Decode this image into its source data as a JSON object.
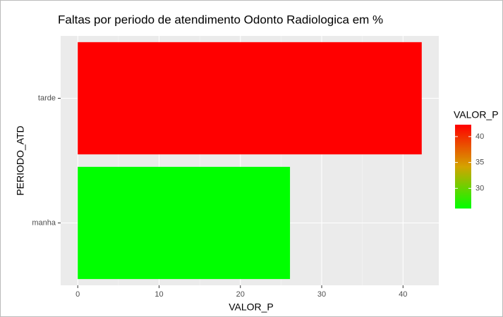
{
  "chart_data": {
    "type": "barh",
    "title": "Faltas por periodo de atendimento Odonto Radiologica em %",
    "x_label": "VALOR_P",
    "y_label": "PERIODO_ATD",
    "categories": [
      "manha",
      "tarde"
    ],
    "values": [
      26.1,
      42.3
    ],
    "colors": [
      "#00ff00",
      "#ff0000"
    ],
    "xlim": [
      -2.1,
      44.4
    ],
    "xticks": [
      0,
      10,
      20,
      30,
      40
    ],
    "grid": true,
    "legend": {
      "title": "VALOR_P",
      "ticks": [
        30,
        35,
        40
      ],
      "low": "#00ff00",
      "high": "#ff0000"
    }
  }
}
